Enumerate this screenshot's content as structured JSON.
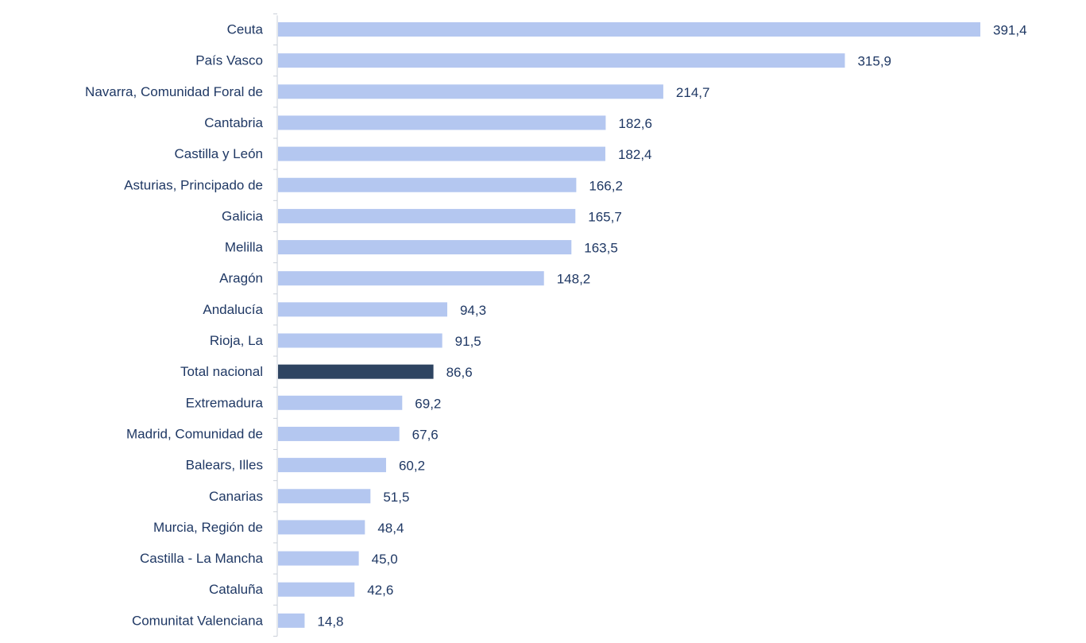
{
  "chart_data": {
    "type": "bar",
    "orientation": "horizontal",
    "categories": [
      "Ceuta",
      "País Vasco",
      "Navarra, Comunidad Foral de",
      "Cantabria",
      "Castilla y León",
      "Asturias, Principado de",
      "Galicia",
      "Melilla",
      "Aragón",
      "Andalucía",
      "Rioja, La",
      "Total nacional",
      "Extremadura",
      "Madrid, Comunidad de",
      "Balears, Illes",
      "Canarias",
      "Murcia, Región de",
      "Castilla - La Mancha",
      "Cataluña",
      "Comunitat Valenciana"
    ],
    "values": [
      391.4,
      315.9,
      214.7,
      182.6,
      182.4,
      166.2,
      165.7,
      163.5,
      148.2,
      94.3,
      91.5,
      86.6,
      69.2,
      67.6,
      60.2,
      51.5,
      48.4,
      45.0,
      42.6,
      14.8
    ],
    "value_labels": [
      "391,4",
      "315,9",
      "214,7",
      "182,6",
      "182,4",
      "166,2",
      "165,7",
      "163,5",
      "148,2",
      "94,3",
      "91,5",
      "86,6",
      "69,2",
      "67,6",
      "60,2",
      "51,5",
      "48,4",
      "45,0",
      "42,6",
      "14,8"
    ],
    "highlight_category": "Total nacional",
    "colors": {
      "bar": "#b4c7f0",
      "highlight_bar": "#2e4461",
      "text": "#1f3864",
      "axis": "#c9cfd8"
    },
    "xlim": [
      0,
      400
    ],
    "grid": false,
    "legend": "none",
    "title": "",
    "xlabel": "",
    "ylabel": ""
  }
}
